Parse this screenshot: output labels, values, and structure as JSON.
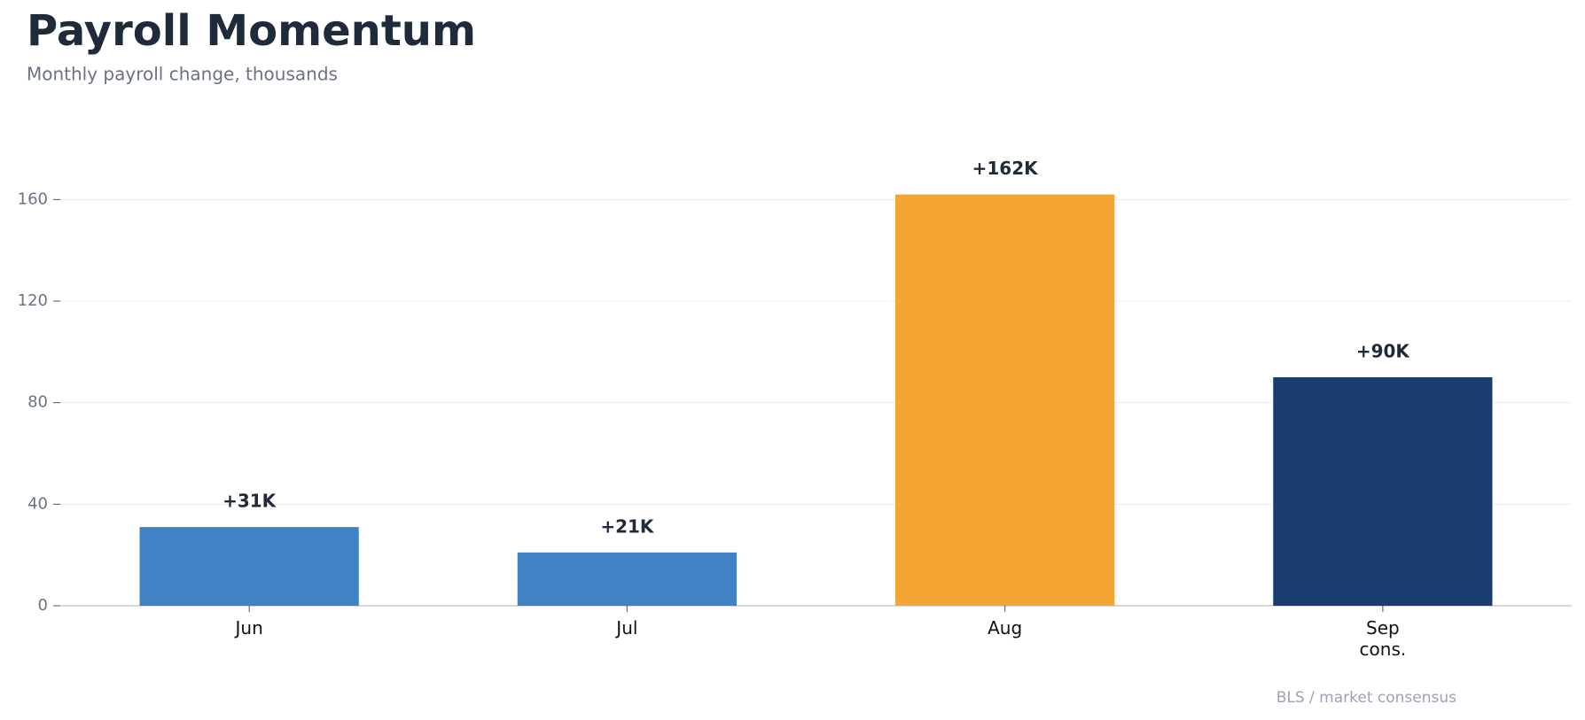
{
  "chart_data": {
    "type": "bar",
    "title": "Payroll Momentum",
    "subtitle": "Monthly payroll change, thousands",
    "categories": [
      "Jun",
      "Jul",
      "Aug",
      "Sep\ncons."
    ],
    "values": [
      31,
      21,
      162,
      90
    ],
    "value_labels": [
      "+31K",
      "+21K",
      "+162K",
      "+90K"
    ],
    "colors": [
      "#3f83c4",
      "#3f83c4",
      "#f4a533",
      "#1a3d6e"
    ],
    "ylim": [
      0,
      180
    ],
    "yticks": [
      0,
      40,
      80,
      120,
      160
    ],
    "grid": true,
    "source": "BLS / market consensus"
  }
}
